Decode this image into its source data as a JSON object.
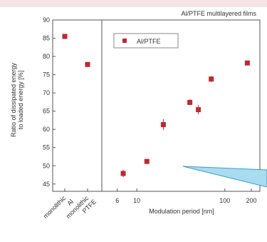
{
  "chart_data": {
    "type": "scatter",
    "title": "Al/PTFE multilayered films",
    "ylabel_line1": "Ratio of dissipated energy",
    "ylabel_line2": "to loaded energy [%]",
    "xlabel": "Modulation period [nm]",
    "x_scale": "log",
    "xlim": [
      4,
      250
    ],
    "ylim": [
      43,
      90
    ],
    "yticks": [
      45,
      50,
      55,
      60,
      65,
      70,
      75,
      80,
      85,
      90
    ],
    "xticks": [
      {
        "value": 6,
        "label": "6"
      },
      {
        "value": 10,
        "label": "10"
      },
      {
        "value": 100,
        "label": "100"
      },
      {
        "value": 200,
        "label": "200"
      }
    ],
    "legend": {
      "label": "Al/PTFE",
      "placement": "top-left"
    },
    "marker_color": "#c0282f",
    "monolithic": [
      {
        "label_line1": "monolithic",
        "label_line2": "Al",
        "y": 85.5,
        "err": 0.6
      },
      {
        "label_line1": "monolithic",
        "label_line2": "PTFE",
        "y": 77.8,
        "err": 0.4
      }
    ],
    "series": [
      {
        "name": "Al/PTFE",
        "points": [
          {
            "x": 7,
            "y": 47.9,
            "err": 1.0
          },
          {
            "x": 13,
            "y": 51.2,
            "err": 0.6
          },
          {
            "x": 20,
            "y": 61.3,
            "err": 1.5
          },
          {
            "x": 40,
            "y": 67.4,
            "err": 0.8
          },
          {
            "x": 50,
            "y": 65.4,
            "err": 1.3
          },
          {
            "x": 70,
            "y": 73.8,
            "err": 0.8
          },
          {
            "x": 180,
            "y": 78.2,
            "err": 0.6
          }
        ]
      }
    ]
  },
  "decor": {
    "callout_fill": "#a9dcef",
    "callout_stroke": "#3a9cc8",
    "band_color": "#f6e3e8"
  }
}
